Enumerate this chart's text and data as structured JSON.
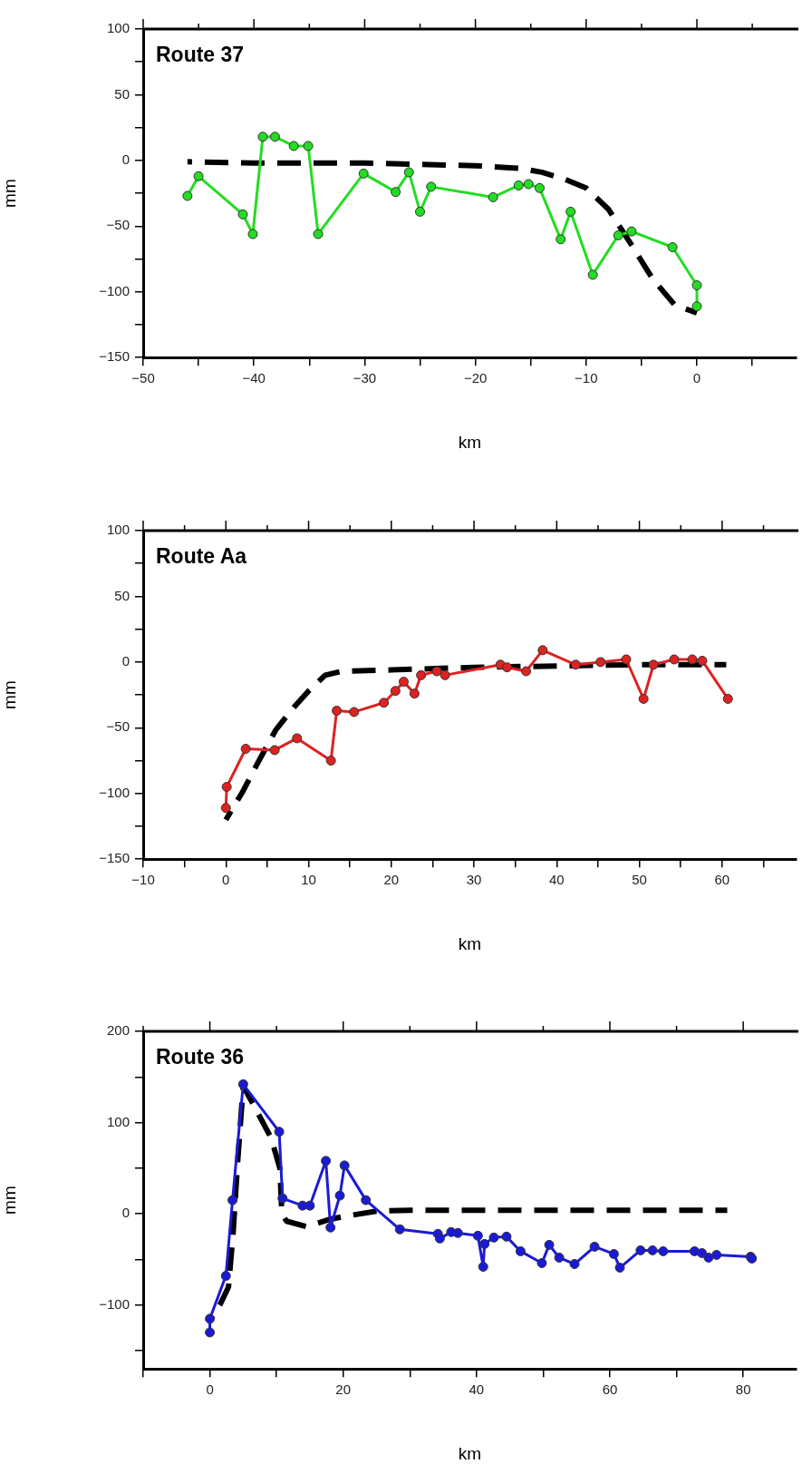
{
  "chart_data": [
    {
      "type": "line",
      "title": "Route 37",
      "xlabel": "km",
      "ylabel": "mm",
      "xlim": [
        -50,
        9
      ],
      "xticks": [
        -50,
        {
          "value": -45,
          "label": null
        },
        -40,
        {
          "value": -35,
          "label": null
        },
        -30,
        {
          "value": -25,
          "label": null
        },
        -20,
        {
          "value": -15,
          "label": null
        },
        -10,
        {
          "value": -5,
          "label": null
        },
        0,
        {
          "value": 5,
          "label": null
        }
      ],
      "ylim": [
        -150,
        100
      ],
      "yticks": [
        -150,
        {
          "value": -125,
          "label": null
        },
        -100,
        {
          "value": -75,
          "label": null
        },
        -50,
        {
          "value": -25,
          "label": null
        },
        0,
        {
          "value": 25,
          "label": null
        },
        50,
        {
          "value": 75,
          "label": null
        },
        100
      ],
      "grid": false,
      "legend": false,
      "series": [
        {
          "color": "#22dd22",
          "marker": "circle",
          "line_style": "solid",
          "x": [
            -46,
            -45,
            -41,
            -40.1,
            -39.2,
            -38.1,
            -36.4,
            -35.1,
            -34.2,
            -30.1,
            -27.2,
            -26,
            -25,
            -24,
            -18.4,
            -16.1,
            -15.2,
            -14.2,
            -12.3,
            -11.4,
            -9.4,
            -7.1,
            -5.9,
            -2.2,
            0,
            0
          ],
          "values": [
            -27,
            -12,
            -41,
            -56,
            18,
            18,
            11,
            11,
            -56,
            -10,
            -24,
            -9,
            -39,
            -20,
            -28,
            -19,
            -18,
            -21,
            -60,
            -39,
            -87,
            -57,
            -54,
            -66,
            -95,
            -111
          ]
        },
        {
          "type": "line",
          "color": "#000000",
          "marker": "none",
          "line_style": "dashed",
          "x": [
            -46,
            -40,
            -30,
            -20,
            -16,
            -14,
            -12,
            -10,
            -8,
            -6,
            -4,
            -2,
            0
          ],
          "values": [
            -1,
            -2,
            -2,
            -4,
            -6,
            -9,
            -14,
            -21,
            -37,
            -63,
            -90,
            -110,
            -116
          ]
        }
      ]
    },
    {
      "type": "line",
      "title": "Route Aa",
      "xlabel": "km",
      "ylabel": "mm",
      "xlim": [
        -10,
        69
      ],
      "xticks": [
        -10,
        {
          "value": -5,
          "label": null
        },
        0,
        {
          "value": 5,
          "label": null
        },
        10,
        {
          "value": 15,
          "label": null
        },
        20,
        {
          "value": 25,
          "label": null
        },
        30,
        {
          "value": 35,
          "label": null
        },
        40,
        {
          "value": 45,
          "label": null
        },
        50,
        {
          "value": 55,
          "label": null
        },
        60,
        {
          "value": 65,
          "label": null
        }
      ],
      "ylim": [
        -150,
        100
      ],
      "yticks": [
        -150,
        {
          "value": -125,
          "label": null
        },
        -100,
        {
          "value": -75,
          "label": null
        },
        -50,
        {
          "value": -25,
          "label": null
        },
        0,
        {
          "value": 25,
          "label": null
        },
        50,
        {
          "value": 75,
          "label": null
        },
        100
      ],
      "grid": false,
      "legend": false,
      "series": [
        {
          "color": "#dd2222",
          "marker": "circle",
          "line_style": "solid",
          "x": [
            0,
            0.1,
            2.4,
            5.9,
            8.6,
            12.7,
            13.4,
            15.5,
            19.1,
            20.5,
            21.5,
            22.8,
            23.6,
            25.5,
            26.5,
            33.2,
            34,
            36.3,
            38.3,
            42.3,
            45.3,
            48.4,
            50.5,
            51.7,
            54.2,
            56.4,
            57.6,
            60.7
          ],
          "values": [
            -111,
            -95,
            -66,
            -67,
            -58,
            -75,
            -37,
            -38,
            -31,
            -22,
            -15,
            -24,
            -10,
            -7,
            -10,
            -2,
            -4,
            -7,
            9,
            -2,
            0,
            2,
            -28,
            -2,
            2,
            2,
            1,
            -28
          ]
        },
        {
          "type": "line",
          "color": "#000000",
          "marker": "none",
          "line_style": "dashed",
          "x": [
            0,
            2,
            4,
            6,
            8,
            10,
            12,
            14,
            20,
            30,
            40,
            50,
            60.5
          ],
          "values": [
            -120,
            -99,
            -75,
            -52,
            -36,
            -22,
            -10,
            -7,
            -6,
            -4,
            -3,
            -2,
            -2
          ]
        }
      ]
    },
    {
      "type": "line",
      "title": "Route 36",
      "xlabel": "km",
      "ylabel": "mm",
      "xlim": [
        -10,
        88
      ],
      "xticks": [
        {
          "value": -10,
          "label": null
        },
        0,
        {
          "value": 10,
          "label": null
        },
        20,
        {
          "value": 30,
          "label": null
        },
        40,
        {
          "value": 50,
          "label": null
        },
        60,
        {
          "value": 70,
          "label": null
        },
        80
      ],
      "ylim": [
        -170,
        200
      ],
      "yticks": [
        {
          "value": -150,
          "label": null
        },
        -100,
        {
          "value": -50,
          "label": null
        },
        0,
        {
          "value": 50,
          "label": null
        },
        100,
        {
          "value": 150,
          "label": null
        },
        200
      ],
      "grid": false,
      "legend": false,
      "series": [
        {
          "color": "#1a1ad6",
          "marker": "circle",
          "line_style": "solid",
          "x": [
            0,
            0,
            2.4,
            3.4,
            5,
            10.4,
            10.9,
            13.9,
            15,
            17.4,
            18.1,
            19.5,
            20.2,
            23.4,
            28.5,
            34.2,
            34.5,
            36.2,
            37.2,
            40.2,
            41,
            41.2,
            42.6,
            44.5,
            46.6,
            49.8,
            50.9,
            52.4,
            54.7,
            57.7,
            60.6,
            61.5,
            64.6,
            66.4,
            68,
            72.7,
            73.8,
            74.8,
            76,
            81.1,
            81.3
          ],
          "values": [
            -130,
            -115,
            -68,
            15,
            142,
            90,
            17,
            9,
            9,
            58,
            -15,
            20,
            53,
            15,
            -17,
            -22,
            -27,
            -20,
            -21,
            -24,
            -58,
            -33,
            -26,
            -25,
            -41,
            -54,
            -34,
            -48,
            -55,
            -36,
            -44,
            -59,
            -40,
            -40,
            -41,
            -41,
            -43,
            -48,
            -45,
            -47,
            -49
          ]
        },
        {
          "type": "line",
          "color": "#000000",
          "marker": "none",
          "line_style": "dashed",
          "x": [
            0,
            1.5,
            2.8,
            3.5,
            4.2,
            5,
            6.5,
            9.2,
            10.5,
            10.8,
            11.5,
            14.5,
            18,
            20,
            25,
            30,
            77.6
          ],
          "values": [
            -117,
            -100,
            -80,
            -20,
            60,
            140,
            120,
            83,
            50,
            0,
            -8,
            -14,
            -6,
            -3,
            3,
            4,
            4
          ]
        }
      ]
    }
  ]
}
